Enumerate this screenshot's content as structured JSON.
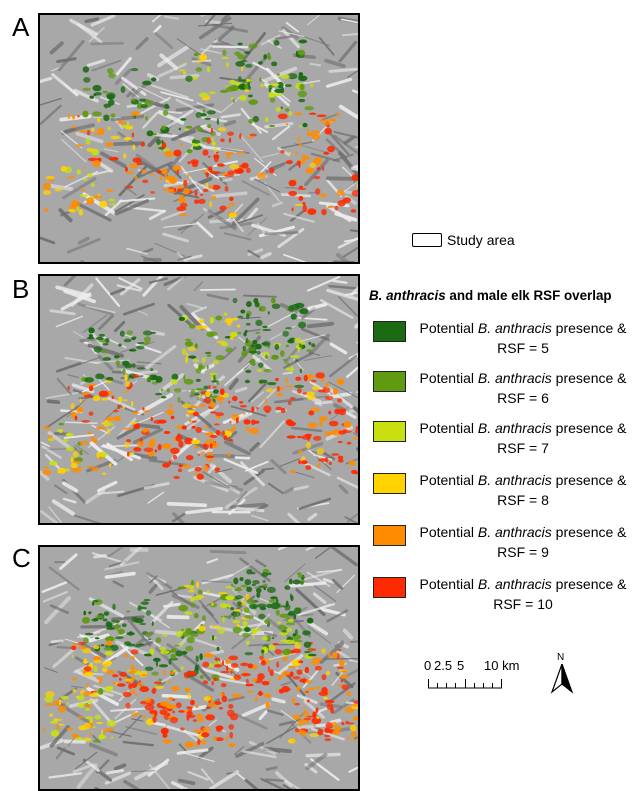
{
  "panels": [
    {
      "letter": "A"
    },
    {
      "letter": "B"
    },
    {
      "letter": "C"
    }
  ],
  "legend": {
    "study_area_label": "Study area",
    "title_italic": "B. anthracis",
    "title_rest": " and male elk RSF overlap",
    "items": [
      {
        "prefix": "Potential ",
        "italic": "B. anthracis",
        "suffix": " presence &",
        "rsf": "RSF = 5",
        "color": "#1a6b12"
      },
      {
        "prefix": "Potential ",
        "italic": "B. anthracis",
        "suffix": " presence &",
        "rsf": "RSF = 6",
        "color": "#5f9a10"
      },
      {
        "prefix": "Potential ",
        "italic": "B. anthracis",
        "suffix": " presence &",
        "rsf": "RSF = 7",
        "color": "#c8e010"
      },
      {
        "prefix": "Potential ",
        "italic": "B. anthracis",
        "suffix": " presence &",
        "rsf": "RSF = 8",
        "color": "#ffd200"
      },
      {
        "prefix": "Potential ",
        "italic": "B. anthracis",
        "suffix": " presence &",
        "rsf": "RSF = 9",
        "color": "#ff8c00"
      },
      {
        "prefix": "Potential ",
        "italic": "B. anthracis",
        "suffix": " presence &",
        "rsf": "RSF = 10",
        "color": "#ff2a00"
      }
    ]
  },
  "scale_bar": {
    "labels": [
      "0",
      "2.5",
      "5",
      "10 km"
    ]
  },
  "north_arrow": {
    "label": "N"
  }
}
